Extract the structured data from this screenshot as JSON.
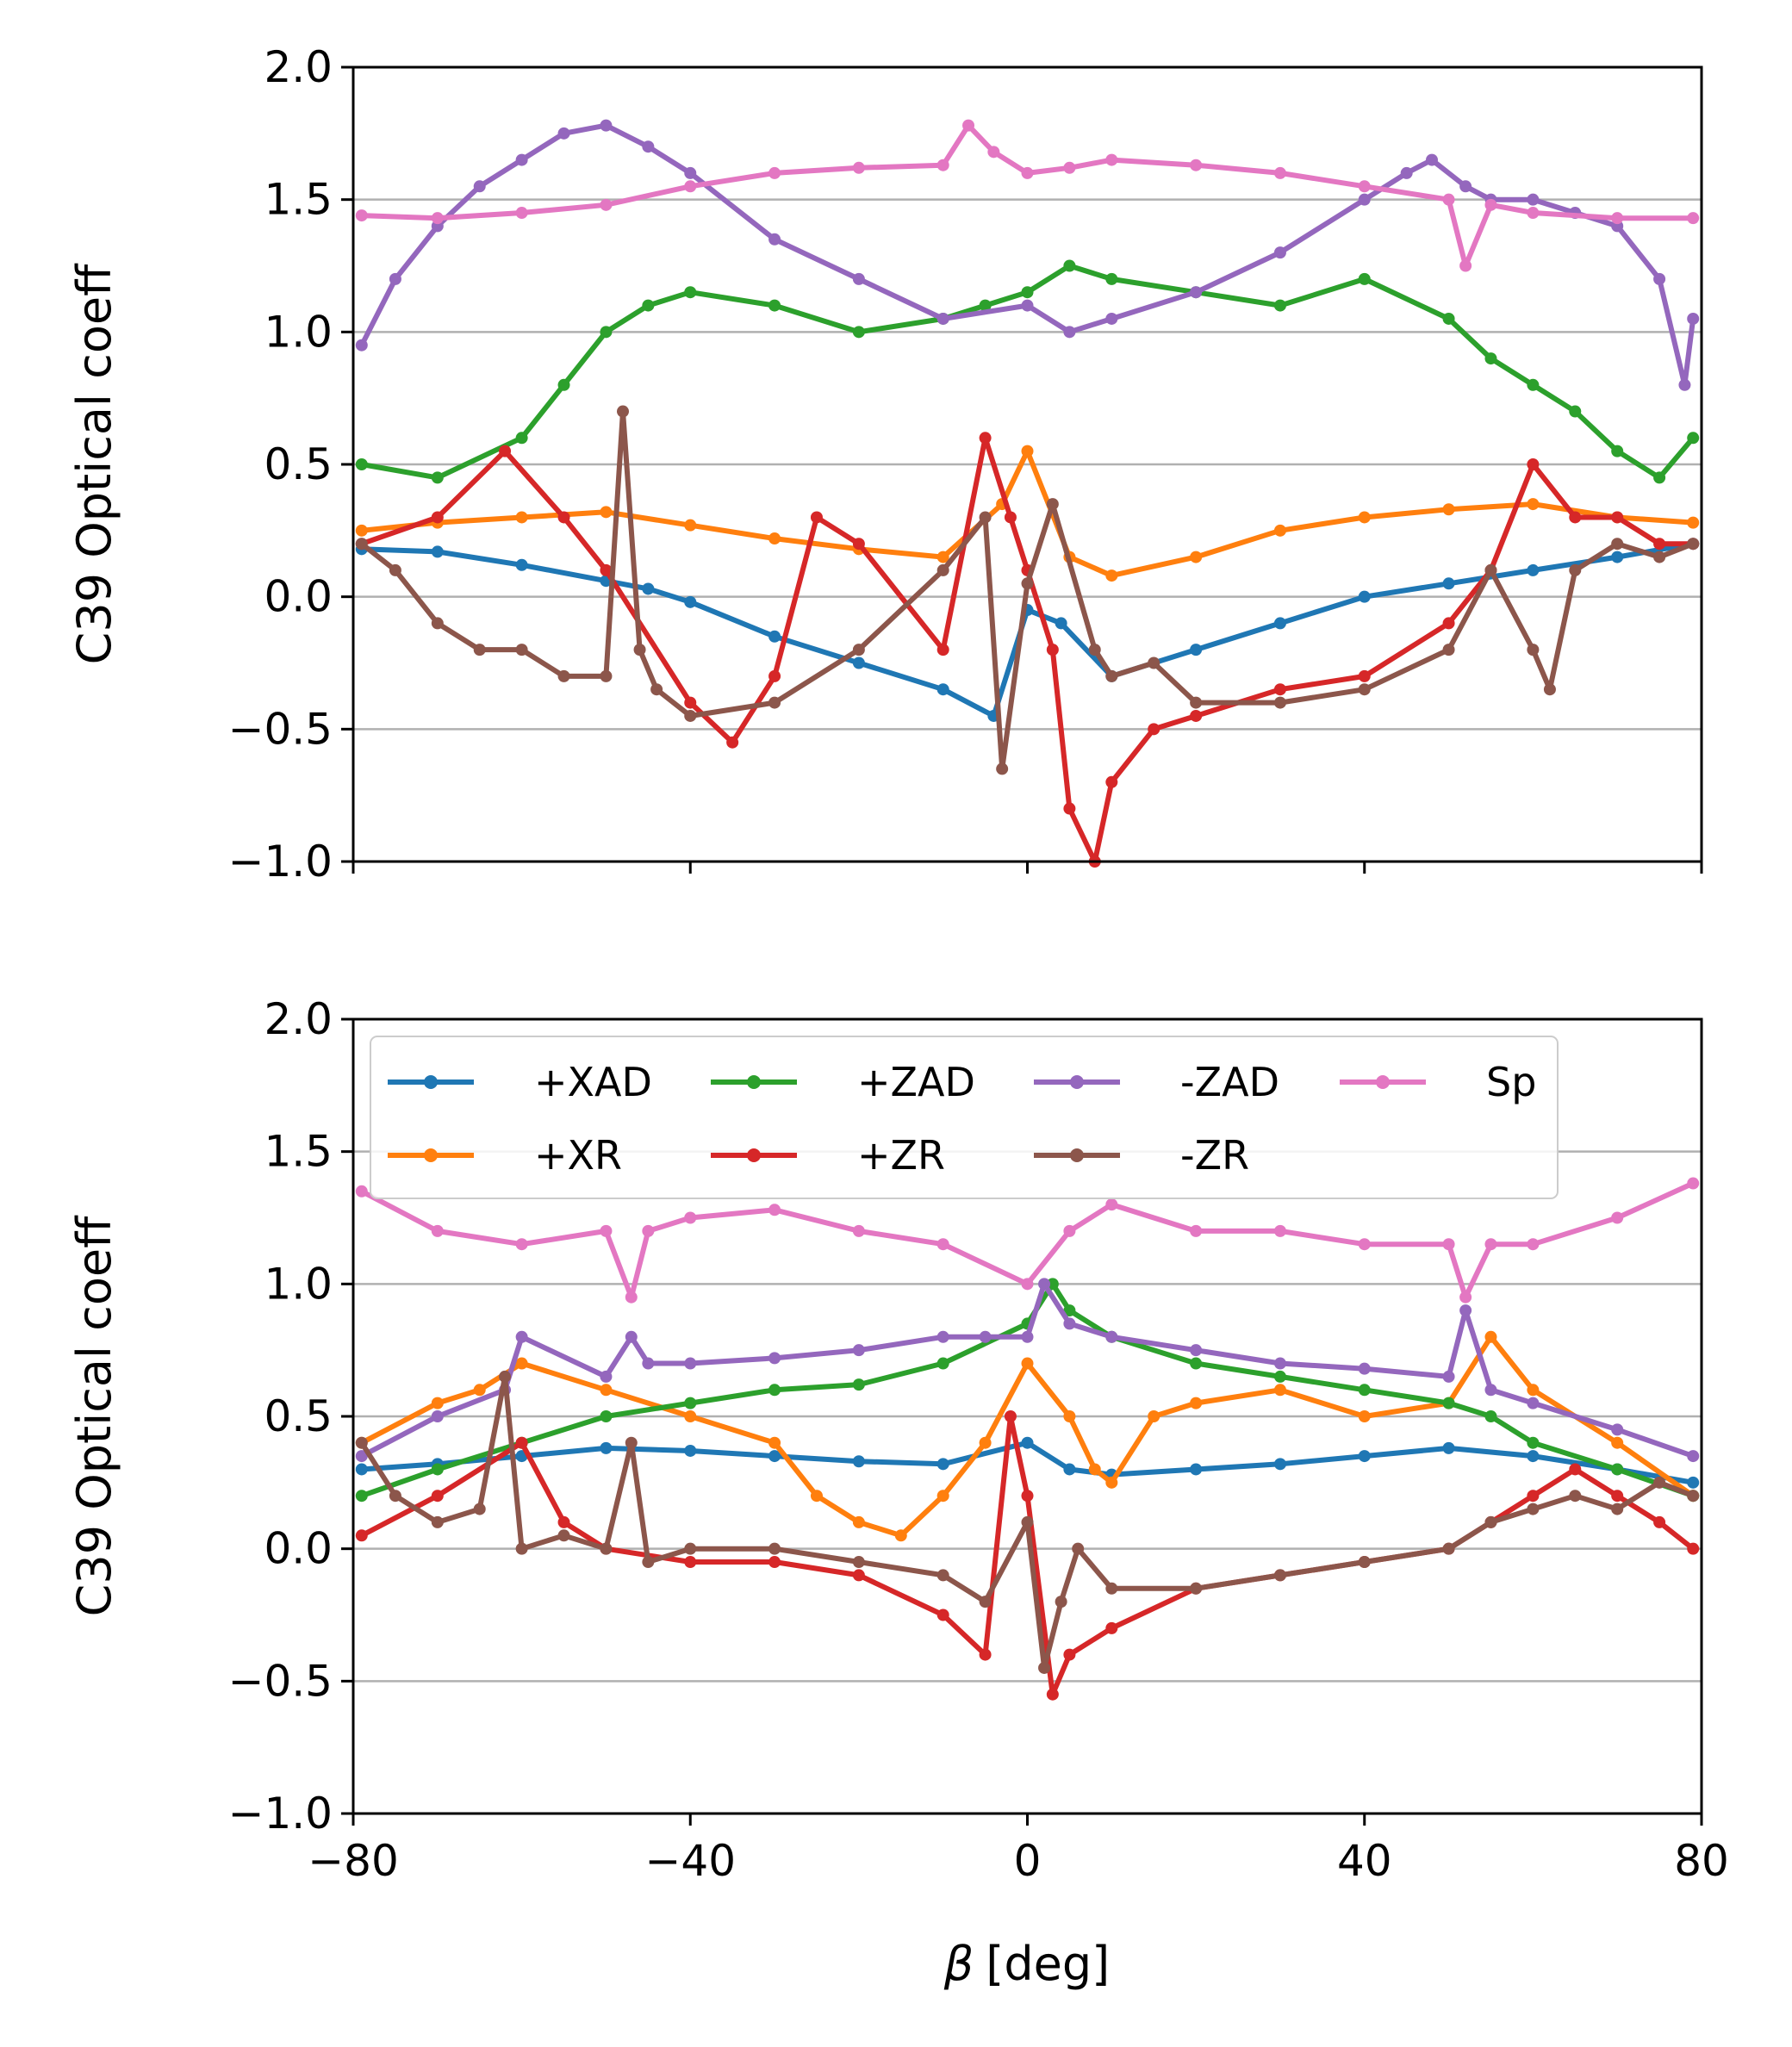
{
  "figure": {
    "xlabel_symbol": "β",
    "xlabel_unit": "[deg]"
  },
  "chart_data": [
    {
      "type": "line",
      "panel": "top",
      "ylabel": "C39 Optical coeff",
      "xlabel": "",
      "xlim": [
        -80,
        80
      ],
      "ylim": [
        -1.0,
        2.0
      ],
      "xticks": [
        -80,
        -40,
        0,
        40,
        80
      ],
      "xtick_labels": [
        "",
        "",
        "",
        "",
        ""
      ],
      "yticks": [
        -1.0,
        -0.5,
        0.0,
        0.5,
        1.0,
        1.5,
        2.0
      ],
      "ytick_labels": [
        "−1.0",
        "−0.5",
        "0.0",
        "0.5",
        "1.0",
        "1.5",
        "2.0"
      ],
      "grid": "horizontal",
      "legend": null,
      "series": [
        {
          "name": "+XAD",
          "color": "#1f77b4",
          "x": [
            -79,
            -70,
            -60,
            -50,
            -45,
            -40,
            -30,
            -20,
            -10,
            -4,
            0,
            4,
            10,
            20,
            30,
            40,
            50,
            60,
            70,
            79
          ],
          "y": [
            0.18,
            0.17,
            0.12,
            0.06,
            0.03,
            -0.02,
            -0.15,
            -0.25,
            -0.35,
            -0.45,
            -0.05,
            -0.1,
            -0.3,
            -0.2,
            -0.1,
            0.0,
            0.05,
            0.1,
            0.15,
            0.2
          ]
        },
        {
          "name": "+XR",
          "color": "#ff7f0e",
          "x": [
            -79,
            -70,
            -60,
            -50,
            -40,
            -30,
            -20,
            -10,
            -3,
            0,
            5,
            10,
            20,
            30,
            40,
            50,
            60,
            70,
            79
          ],
          "y": [
            0.25,
            0.28,
            0.3,
            0.32,
            0.27,
            0.22,
            0.18,
            0.15,
            0.35,
            0.55,
            0.15,
            0.08,
            0.15,
            0.25,
            0.3,
            0.33,
            0.35,
            0.3,
            0.28
          ]
        },
        {
          "name": "+ZAD",
          "color": "#2ca02c",
          "x": [
            -79,
            -70,
            -60,
            -55,
            -50,
            -45,
            -40,
            -30,
            -20,
            -10,
            -5,
            0,
            5,
            10,
            20,
            30,
            40,
            50,
            55,
            60,
            65,
            70,
            75,
            79
          ],
          "y": [
            0.5,
            0.45,
            0.6,
            0.8,
            1.0,
            1.1,
            1.15,
            1.1,
            1.0,
            1.05,
            1.1,
            1.15,
            1.25,
            1.2,
            1.15,
            1.1,
            1.2,
            1.05,
            0.9,
            0.8,
            0.7,
            0.55,
            0.45,
            0.6
          ]
        },
        {
          "name": "+ZR",
          "color": "#d62728",
          "x": [
            -79,
            -70,
            -62,
            -55,
            -50,
            -40,
            -35,
            -30,
            -25,
            -20,
            -10,
            -5,
            -2,
            0,
            3,
            5,
            8,
            10,
            15,
            20,
            30,
            40,
            50,
            55,
            60,
            65,
            70,
            75,
            79
          ],
          "y": [
            0.2,
            0.3,
            0.55,
            0.3,
            0.1,
            -0.4,
            -0.55,
            -0.3,
            0.3,
            0.2,
            -0.2,
            0.6,
            0.3,
            0.1,
            -0.2,
            -0.8,
            -1.0,
            -0.7,
            -0.5,
            -0.45,
            -0.35,
            -0.3,
            -0.1,
            0.1,
            0.5,
            0.3,
            0.3,
            0.2,
            0.2
          ]
        },
        {
          "name": "-ZAD",
          "color": "#9467bd",
          "x": [
            -79,
            -75,
            -70,
            -65,
            -60,
            -55,
            -50,
            -45,
            -40,
            -30,
            -20,
            -10,
            0,
            5,
            10,
            20,
            30,
            40,
            45,
            48,
            52,
            55,
            60,
            65,
            70,
            75,
            78,
            79
          ],
          "y": [
            0.95,
            1.2,
            1.4,
            1.55,
            1.65,
            1.75,
            1.78,
            1.7,
            1.6,
            1.35,
            1.2,
            1.05,
            1.1,
            1.0,
            1.05,
            1.15,
            1.3,
            1.5,
            1.6,
            1.65,
            1.55,
            1.5,
            1.5,
            1.45,
            1.4,
            1.2,
            0.8,
            1.05
          ]
        },
        {
          "name": "-ZR",
          "color": "#8c564b",
          "x": [
            -79,
            -75,
            -70,
            -65,
            -60,
            -55,
            -50,
            -48,
            -46,
            -44,
            -40,
            -30,
            -20,
            -10,
            -5,
            -3,
            0,
            3,
            8,
            10,
            15,
            20,
            30,
            40,
            50,
            55,
            60,
            62,
            65,
            70,
            75,
            79
          ],
          "y": [
            0.2,
            0.1,
            -0.1,
            -0.2,
            -0.2,
            -0.3,
            -0.3,
            0.7,
            -0.2,
            -0.35,
            -0.45,
            -0.4,
            -0.2,
            0.1,
            0.3,
            -0.65,
            0.05,
            0.35,
            -0.2,
            -0.3,
            -0.25,
            -0.4,
            -0.4,
            -0.35,
            -0.2,
            0.1,
            -0.2,
            -0.35,
            0.1,
            0.2,
            0.15,
            0.2
          ]
        },
        {
          "name": "Sp",
          "color": "#e377c2",
          "x": [
            -79,
            -70,
            -60,
            -50,
            -40,
            -30,
            -20,
            -10,
            -7,
            -4,
            0,
            5,
            10,
            20,
            30,
            40,
            50,
            52,
            55,
            60,
            70,
            79
          ],
          "y": [
            1.44,
            1.43,
            1.45,
            1.48,
            1.55,
            1.6,
            1.62,
            1.63,
            1.78,
            1.68,
            1.6,
            1.62,
            1.65,
            1.63,
            1.6,
            1.55,
            1.5,
            1.25,
            1.48,
            1.45,
            1.43,
            1.43
          ]
        }
      ]
    },
    {
      "type": "line",
      "panel": "bottom",
      "ylabel": "C39 Optical coeff",
      "xlabel": "β [deg]",
      "xlim": [
        -80,
        80
      ],
      "ylim": [
        -1.0,
        2.0
      ],
      "xticks": [
        -80,
        -40,
        0,
        40,
        80
      ],
      "xtick_labels": [
        "−80",
        "−40",
        "0",
        "40",
        "80"
      ],
      "yticks": [
        -1.0,
        -0.5,
        0.0,
        0.5,
        1.0,
        1.5,
        2.0
      ],
      "ytick_labels": [
        "−1.0",
        "−0.5",
        "0.0",
        "0.5",
        "1.0",
        "1.5",
        "2.0"
      ],
      "grid": "horizontal",
      "legend": {
        "position": "top",
        "ncol": 4,
        "order": [
          "+XAD",
          "+XR",
          "+ZAD",
          "+ZR",
          "-ZAD",
          "-ZR",
          "Sp"
        ]
      },
      "series": [
        {
          "name": "+XAD",
          "color": "#1f77b4",
          "x": [
            -79,
            -70,
            -60,
            -50,
            -40,
            -30,
            -20,
            -10,
            0,
            5,
            10,
            20,
            30,
            40,
            50,
            60,
            70,
            79
          ],
          "y": [
            0.3,
            0.32,
            0.35,
            0.38,
            0.37,
            0.35,
            0.33,
            0.32,
            0.4,
            0.3,
            0.28,
            0.3,
            0.32,
            0.35,
            0.38,
            0.35,
            0.3,
            0.25
          ]
        },
        {
          "name": "+XR",
          "color": "#ff7f0e",
          "x": [
            -79,
            -70,
            -65,
            -60,
            -50,
            -40,
            -30,
            -25,
            -20,
            -15,
            -10,
            -5,
            0,
            5,
            8,
            10,
            15,
            20,
            30,
            40,
            50,
            55,
            60,
            70,
            79
          ],
          "y": [
            0.4,
            0.55,
            0.6,
            0.7,
            0.6,
            0.5,
            0.4,
            0.2,
            0.1,
            0.05,
            0.2,
            0.4,
            0.7,
            0.5,
            0.3,
            0.25,
            0.5,
            0.55,
            0.6,
            0.5,
            0.55,
            0.8,
            0.6,
            0.4,
            0.2
          ]
        },
        {
          "name": "+ZAD",
          "color": "#2ca02c",
          "x": [
            -79,
            -70,
            -60,
            -50,
            -40,
            -30,
            -20,
            -10,
            0,
            3,
            5,
            10,
            20,
            30,
            40,
            50,
            55,
            60,
            70,
            79
          ],
          "y": [
            0.2,
            0.3,
            0.4,
            0.5,
            0.55,
            0.6,
            0.62,
            0.7,
            0.85,
            1.0,
            0.9,
            0.8,
            0.7,
            0.65,
            0.6,
            0.55,
            0.5,
            0.4,
            0.3,
            0.2
          ]
        },
        {
          "name": "+ZR",
          "color": "#d62728",
          "x": [
            -79,
            -70,
            -60,
            -55,
            -50,
            -40,
            -30,
            -20,
            -10,
            -5,
            -2,
            0,
            3,
            5,
            10,
            20,
            30,
            40,
            50,
            55,
            60,
            65,
            70,
            75,
            79
          ],
          "y": [
            0.05,
            0.2,
            0.4,
            0.1,
            0.0,
            -0.05,
            -0.05,
            -0.1,
            -0.25,
            -0.4,
            0.5,
            0.2,
            -0.55,
            -0.4,
            -0.3,
            -0.15,
            -0.1,
            -0.05,
            0.0,
            0.1,
            0.2,
            0.3,
            0.2,
            0.1,
            0.0
          ]
        },
        {
          "name": "-ZAD",
          "color": "#9467bd",
          "x": [
            -79,
            -70,
            -62,
            -60,
            -50,
            -47,
            -45,
            -40,
            -30,
            -20,
            -10,
            -5,
            0,
            2,
            5,
            10,
            20,
            30,
            40,
            50,
            52,
            55,
            60,
            70,
            79
          ],
          "y": [
            0.35,
            0.5,
            0.6,
            0.8,
            0.65,
            0.8,
            0.7,
            0.7,
            0.72,
            0.75,
            0.8,
            0.8,
            0.8,
            1.0,
            0.85,
            0.8,
            0.75,
            0.7,
            0.68,
            0.65,
            0.9,
            0.6,
            0.55,
            0.45,
            0.35
          ]
        },
        {
          "name": "-ZR",
          "color": "#8c564b",
          "x": [
            -79,
            -75,
            -70,
            -65,
            -62,
            -60,
            -55,
            -50,
            -47,
            -45,
            -40,
            -30,
            -20,
            -10,
            -5,
            0,
            2,
            4,
            6,
            10,
            20,
            30,
            40,
            50,
            55,
            60,
            65,
            70,
            75,
            79
          ],
          "y": [
            0.4,
            0.2,
            0.1,
            0.15,
            0.65,
            0.0,
            0.05,
            0.0,
            0.4,
            -0.05,
            0.0,
            0.0,
            -0.05,
            -0.1,
            -0.2,
            0.1,
            -0.45,
            -0.2,
            0.0,
            -0.15,
            -0.15,
            -0.1,
            -0.05,
            0.0,
            0.1,
            0.15,
            0.2,
            0.15,
            0.25,
            0.2
          ]
        },
        {
          "name": "Sp",
          "color": "#e377c2",
          "x": [
            -79,
            -70,
            -60,
            -50,
            -47,
            -45,
            -40,
            -30,
            -20,
            -10,
            0,
            5,
            10,
            20,
            30,
            40,
            50,
            52,
            55,
            60,
            70,
            79
          ],
          "y": [
            1.35,
            1.2,
            1.15,
            1.2,
            0.95,
            1.2,
            1.25,
            1.28,
            1.2,
            1.15,
            1.0,
            1.2,
            1.3,
            1.2,
            1.2,
            1.15,
            1.15,
            0.95,
            1.15,
            1.15,
            1.25,
            1.38
          ]
        }
      ]
    }
  ]
}
